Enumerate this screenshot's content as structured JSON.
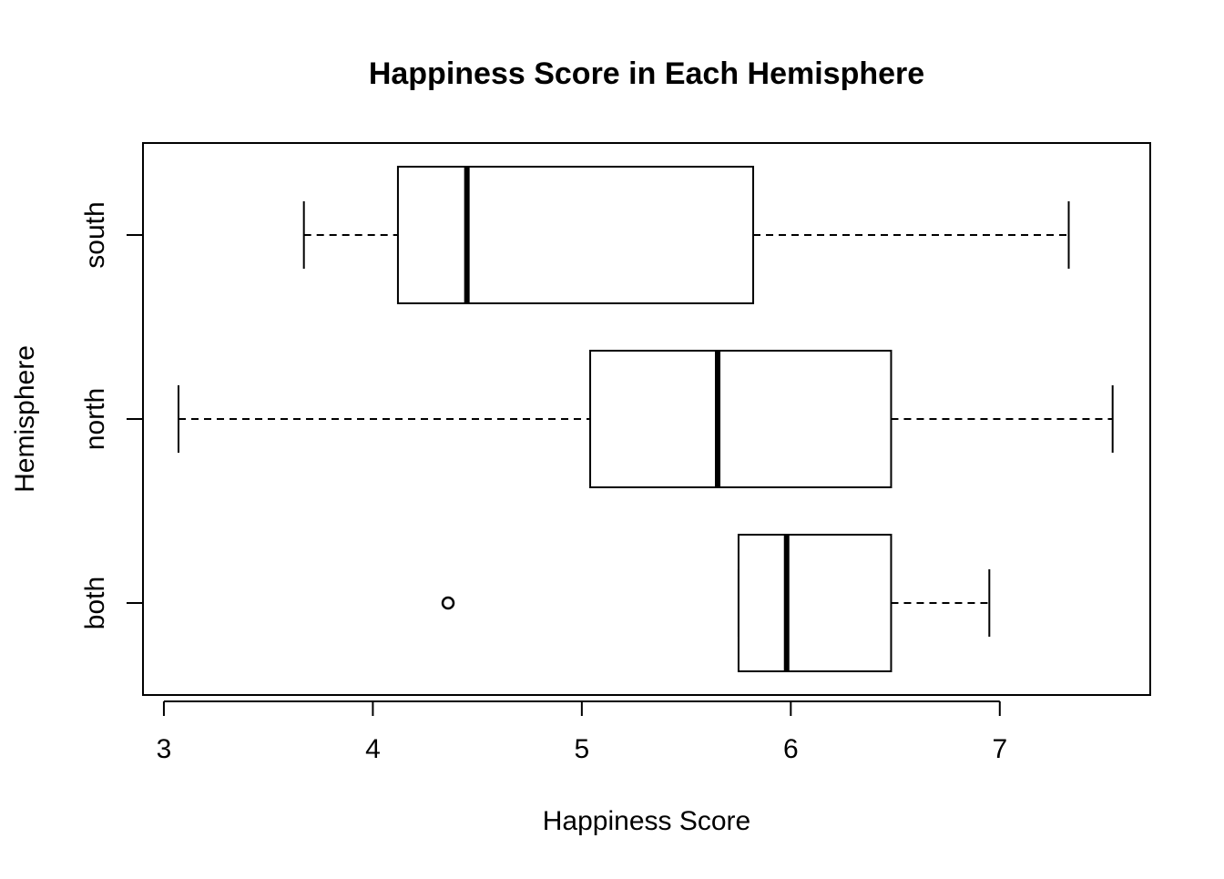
{
  "chart_data": {
    "type": "boxplot",
    "orientation": "horizontal",
    "title": "Happiness Score in Each Hemisphere",
    "xlabel": "Happiness Score",
    "ylabel": "Hemisphere",
    "xlim": [
      2.9,
      7.72
    ],
    "x_ticks": [
      3,
      4,
      5,
      6,
      7
    ],
    "x_tick_labels": [
      "3",
      "4",
      "5",
      "6",
      "7"
    ],
    "categories": [
      "both",
      "north",
      "south"
    ],
    "boxes": [
      {
        "category": "both",
        "whisker_low": 5.75,
        "q1": 5.75,
        "median": 5.98,
        "q3": 6.48,
        "whisker_high": 6.95,
        "outliers": [
          4.36
        ]
      },
      {
        "category": "north",
        "whisker_low": 3.07,
        "q1": 5.04,
        "median": 5.65,
        "q3": 6.48,
        "whisker_high": 7.54,
        "outliers": []
      },
      {
        "category": "south",
        "whisker_low": 3.67,
        "q1": 4.12,
        "median": 4.45,
        "q3": 5.82,
        "whisker_high": 7.33,
        "outliers": []
      }
    ],
    "grid": false,
    "legend": "none",
    "colors": {
      "box_fill": "#ffffff",
      "stroke": "#000000"
    }
  }
}
